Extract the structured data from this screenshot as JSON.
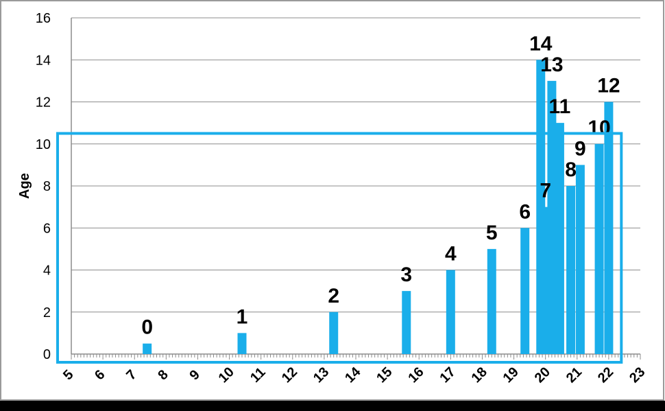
{
  "chart_data": {
    "type": "bar",
    "title": "",
    "xlabel": "",
    "ylabel": "Age",
    "xlim": [
      5,
      23
    ],
    "ylim": [
      0,
      16
    ],
    "y_ticks": [
      "0",
      "2",
      "4",
      "6",
      "8",
      "10",
      "12",
      "14",
      "16"
    ],
    "x_ticks": [
      "5",
      "6",
      "7",
      "8",
      "9",
      "10",
      "11",
      "12",
      "13",
      "14",
      "15",
      "16",
      "17",
      "18",
      "19",
      "20",
      "21",
      "22",
      "23"
    ],
    "grid": "horizontal",
    "bar_color": "#1aaeea",
    "highlight_box_color": "#1aaeea",
    "bars": [
      {
        "label": "0",
        "x": 7.4,
        "y": 0.5
      },
      {
        "label": "1",
        "x": 10.4,
        "y": 1
      },
      {
        "label": "2",
        "x": 13.3,
        "y": 2
      },
      {
        "label": "3",
        "x": 15.6,
        "y": 3
      },
      {
        "label": "4",
        "x": 17.0,
        "y": 4
      },
      {
        "label": "5",
        "x": 18.3,
        "y": 5
      },
      {
        "label": "6",
        "x": 19.35,
        "y": 6
      },
      {
        "label": "7",
        "x": 20.0,
        "y": 7
      },
      {
        "label": "14",
        "x": 19.85,
        "y": 14
      },
      {
        "label": "13",
        "x": 20.2,
        "y": 13
      },
      {
        "label": "11",
        "x": 20.45,
        "y": 11
      },
      {
        "label": "8",
        "x": 20.8,
        "y": 8
      },
      {
        "label": "9",
        "x": 21.1,
        "y": 9
      },
      {
        "label": "10",
        "x": 21.7,
        "y": 10
      },
      {
        "label": "12",
        "x": 22.0,
        "y": 12
      }
    ],
    "highlight_box": {
      "x_from": 5,
      "x_to": 22.4,
      "y_from": 0,
      "y_to": 10.5
    }
  }
}
